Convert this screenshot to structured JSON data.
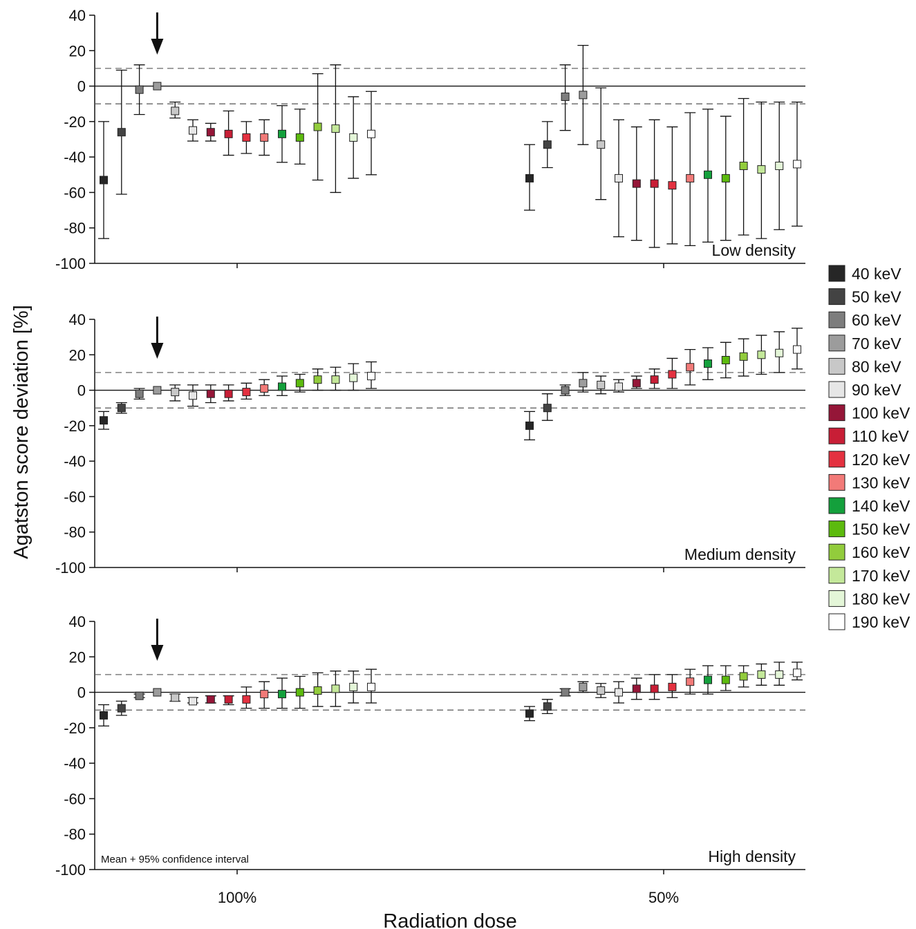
{
  "chart_data": {
    "type": "scatter",
    "ylabel": "Agatston score deviation [%]",
    "xlabel": "Radiation dose",
    "x_groups": [
      "100%",
      "50%"
    ],
    "ylim": [
      -100,
      40
    ],
    "yticks": [
      "40",
      "20",
      "0",
      "-20",
      "-40",
      "-60",
      "-80",
      "-100"
    ],
    "reference_lines": {
      "solid": 0,
      "dashed": [
        10,
        -10
      ]
    },
    "note": "Mean + 95% confidence interval",
    "legend": {
      "placement": "right",
      "entries": [
        {
          "label": "40 keV",
          "color": "#262626"
        },
        {
          "label": "50 keV",
          "color": "#434343"
        },
        {
          "label": "60 keV",
          "color": "#7d7d7d"
        },
        {
          "label": "70 keV",
          "color": "#9c9c9c"
        },
        {
          "label": "80 keV",
          "color": "#c8c8c8"
        },
        {
          "label": "90 keV",
          "color": "#e6e6e6"
        },
        {
          "label": "100 keV",
          "color": "#951638"
        },
        {
          "label": "110 keV",
          "color": "#c81e36"
        },
        {
          "label": "120 keV",
          "color": "#e43140"
        },
        {
          "label": "130 keV",
          "color": "#f27a78"
        },
        {
          "label": "140 keV",
          "color": "#14a03c"
        },
        {
          "label": "150 keV",
          "color": "#5cba0e"
        },
        {
          "label": "160 keV",
          "color": "#92cc3c"
        },
        {
          "label": "170 keV",
          "color": "#c4e89a"
        },
        {
          "label": "180 keV",
          "color": "#e4f6d8"
        },
        {
          "label": "190 keV",
          "color": "#ffffff"
        }
      ]
    },
    "panels": [
      {
        "label": "Low density",
        "series_100": {
          "mean": [
            -53,
            -26,
            -2,
            0,
            -14,
            -25,
            -26,
            -27,
            -29,
            -29,
            -27,
            -29,
            -23,
            -24,
            -29,
            -27
          ],
          "lower": [
            -86,
            -61,
            -16,
            0,
            -18,
            -31,
            -31,
            -39,
            -38,
            -39,
            -43,
            -44,
            -53,
            -60,
            -52,
            -50
          ],
          "upper": [
            -20,
            9,
            12,
            0,
            -9,
            -19,
            -21,
            -14,
            -20,
            -19,
            -11,
            -13,
            7,
            12,
            -6,
            -3
          ]
        },
        "series_50": {
          "mean": [
            -52,
            -33,
            -6,
            -5,
            -33,
            -52,
            -55,
            -55,
            -56,
            -52,
            -50,
            -52,
            -45,
            -47,
            -45,
            -44
          ],
          "lower": [
            -70,
            -46,
            -25,
            -33,
            -64,
            -85,
            -87,
            -91,
            -89,
            -90,
            -88,
            -87,
            -84,
            -86,
            -81,
            -79
          ],
          "upper": [
            -33,
            -20,
            12,
            23,
            -1,
            -19,
            -23,
            -19,
            -23,
            -15,
            -13,
            -17,
            -7,
            -9,
            -9,
            -9
          ]
        }
      },
      {
        "label": "Medium density",
        "series_100": {
          "mean": [
            -17,
            -10,
            -2,
            0,
            -1,
            -3,
            -2,
            -2,
            -1,
            1,
            2,
            4,
            6,
            6,
            7,
            8
          ],
          "lower": [
            -22,
            -13,
            -5,
            0,
            -6,
            -9,
            -7,
            -6,
            -5,
            -3,
            -3,
            -1,
            0,
            0,
            0,
            1
          ],
          "upper": [
            -12,
            -7,
            1,
            0,
            3,
            3,
            3,
            3,
            4,
            6,
            8,
            9,
            12,
            13,
            15,
            16
          ]
        },
        "series_50": {
          "mean": [
            -20,
            -10,
            0,
            4,
            3,
            2,
            4,
            6,
            9,
            13,
            15,
            17,
            19,
            20,
            21,
            23
          ],
          "lower": [
            -28,
            -17,
            -3,
            -1,
            -2,
            -1,
            1,
            1,
            1,
            3,
            6,
            7,
            8,
            9,
            10,
            12
          ],
          "upper": [
            -12,
            -2,
            3,
            10,
            8,
            6,
            8,
            12,
            18,
            23,
            24,
            27,
            29,
            31,
            33,
            35
          ]
        }
      },
      {
        "label": "High density",
        "series_100": {
          "mean": [
            -13,
            -9,
            -2,
            0,
            -3,
            -5,
            -4,
            -4,
            -4,
            -1,
            -1,
            0,
            1,
            2,
            3,
            3
          ],
          "lower": [
            -19,
            -13,
            -3,
            0,
            -5,
            -6,
            -6,
            -7,
            -9,
            -9,
            -9,
            -9,
            -8,
            -8,
            -6,
            -6
          ],
          "upper": [
            -7,
            -5,
            -1,
            0,
            -1,
            -3,
            -2,
            -2,
            3,
            6,
            8,
            9,
            11,
            12,
            12,
            13
          ]
        },
        "series_50": {
          "mean": [
            -12,
            -8,
            0,
            3,
            1,
            0,
            2,
            2,
            3,
            6,
            7,
            7,
            9,
            10,
            10,
            11
          ],
          "lower": [
            -16,
            -12,
            -2,
            0,
            -3,
            -6,
            -4,
            -4,
            -3,
            -1,
            -1,
            1,
            3,
            4,
            4,
            7
          ],
          "upper": [
            -8,
            -4,
            2,
            6,
            5,
            6,
            8,
            10,
            10,
            13,
            15,
            15,
            15,
            16,
            17,
            17
          ]
        }
      }
    ]
  }
}
